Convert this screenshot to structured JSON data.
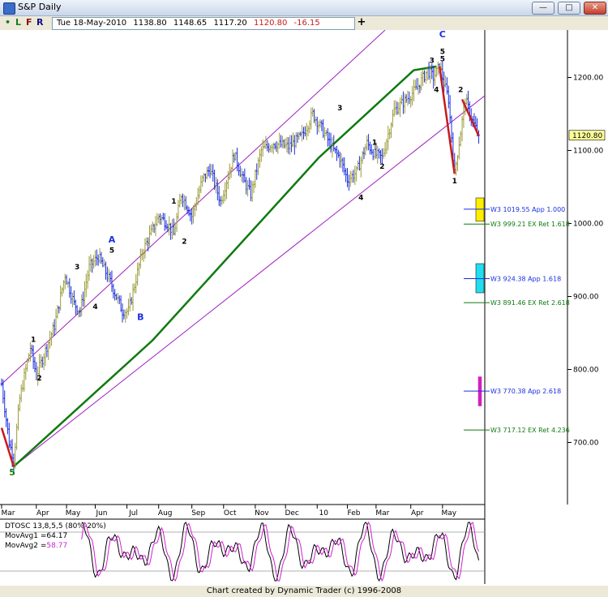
{
  "window": {
    "title": "S&P Daily",
    "min_label": "—",
    "max_label": "□",
    "close_label": "✕"
  },
  "toolbar": {
    "dot_icon": "•",
    "btn_l": "L",
    "btn_f": "F",
    "btn_r": "R",
    "quote": {
      "date": "Tue 18-May-2010",
      "open": "1138.80",
      "high": "1148.65",
      "low": "1117.20",
      "close": "1120.80",
      "change": "-16.15"
    },
    "add_label": "+"
  },
  "colors": {
    "background": "#ffffff",
    "up_bar": "#9b9b3a",
    "down_bar": "#1a2fe0",
    "channel": "#a020c0",
    "ma_line": "#0f7a0f",
    "red_line": "#c81a1a",
    "wave_label_blue": "#1a2fe0",
    "target_green": "#0f7a0f",
    "target_blue": "#1a2fe0",
    "osc_black": "#000000",
    "osc_magenta": "#d020d0"
  },
  "chart_data": {
    "type": "bar",
    "instrument": "S&P Daily",
    "y_range": [
      615,
      1265
    ],
    "y_ticks": [
      700,
      800,
      900,
      1000,
      1100,
      1200
    ],
    "y_tick_labels": [
      "700.00",
      "800.00",
      "900.00",
      "1000.00",
      "1100.00",
      "1200.00"
    ],
    "last_price": 1120.8,
    "last_price_label": "1120.80",
    "x_months": [
      "Mar",
      "Apr",
      "May",
      "Jun",
      "Jul",
      "Aug",
      "Sep",
      "Oct",
      "Nov",
      "Dec",
      "10",
      "Feb",
      "Mar",
      "Apr",
      "May"
    ],
    "x_range": [
      0,
      320
    ],
    "month_day_index": [
      0,
      23,
      43,
      62,
      83,
      104,
      126,
      147,
      168,
      188,
      209,
      229,
      248,
      271,
      292
    ],
    "price_path": [
      [
        0,
        780
      ],
      [
        5,
        700
      ],
      [
        8,
        677
      ],
      [
        12,
        760
      ],
      [
        19,
        830
      ],
      [
        23,
        792
      ],
      [
        35,
        860
      ],
      [
        42,
        930
      ],
      [
        48,
        890
      ],
      [
        52,
        880
      ],
      [
        58,
        940
      ],
      [
        64,
        955
      ],
      [
        72,
        920
      ],
      [
        80,
        880
      ],
      [
        84,
        880
      ],
      [
        93,
        960
      ],
      [
        104,
        1010
      ],
      [
        110,
        1000
      ],
      [
        114,
        985
      ],
      [
        119,
        1040
      ],
      [
        126,
        1010
      ],
      [
        133,
        1060
      ],
      [
        138,
        1075
      ],
      [
        145,
        1030
      ],
      [
        154,
        1095
      ],
      [
        160,
        1060
      ],
      [
        165,
        1040
      ],
      [
        172,
        1100
      ],
      [
        180,
        1110
      ],
      [
        190,
        1105
      ],
      [
        199,
        1120
      ],
      [
        206,
        1150
      ],
      [
        212,
        1130
      ],
      [
        220,
        1100
      ],
      [
        224,
        1090
      ],
      [
        229,
        1060
      ],
      [
        235,
        1070
      ],
      [
        242,
        1110
      ],
      [
        247,
        1095
      ],
      [
        252,
        1090
      ],
      [
        260,
        1155
      ],
      [
        268,
        1170
      ],
      [
        275,
        1185
      ],
      [
        282,
        1210
      ],
      [
        286,
        1200
      ],
      [
        290,
        1215
      ],
      [
        296,
        1170
      ],
      [
        300,
        1068
      ],
      [
        305,
        1140
      ],
      [
        307,
        1170
      ],
      [
        312,
        1140
      ],
      [
        316,
        1120.8
      ]
    ],
    "green_ma": [
      [
        8,
        667
      ],
      [
        100,
        840
      ],
      [
        210,
        1090
      ],
      [
        273,
        1210
      ],
      [
        288,
        1215
      ]
    ],
    "red_lines": [
      [
        [
          0,
          720
        ],
        [
          8,
          667
        ]
      ],
      [
        [
          290,
          1215
        ],
        [
          300,
          1068
        ]
      ],
      [
        [
          305,
          1170
        ],
        [
          316,
          1120
        ]
      ]
    ],
    "channel_upper": [
      [
        0,
        780
      ],
      [
        254,
        1265
      ]
    ],
    "channel_lower": [
      [
        8,
        667
      ],
      [
        320,
        1175
      ]
    ],
    "wave_labels": [
      {
        "text": "5",
        "x": 7,
        "y": 655,
        "color": "green"
      },
      {
        "text": "1",
        "x": 21,
        "y": 838,
        "color": "black"
      },
      {
        "text": "2",
        "x": 25,
        "y": 785,
        "color": "black"
      },
      {
        "text": "3",
        "x": 50,
        "y": 937,
        "color": "black"
      },
      {
        "text": "4",
        "x": 62,
        "y": 883,
        "color": "black"
      },
      {
        "text": "A",
        "x": 73,
        "y": 974,
        "color": "blue"
      },
      {
        "text": "5",
        "x": 73,
        "y": 960,
        "color": "black"
      },
      {
        "text": "B",
        "x": 92,
        "y": 868,
        "color": "blue"
      },
      {
        "text": "1",
        "x": 114,
        "y": 1027,
        "color": "black"
      },
      {
        "text": "2",
        "x": 121,
        "y": 972,
        "color": "black"
      },
      {
        "text": "3",
        "x": 224,
        "y": 1155,
        "color": "black"
      },
      {
        "text": "4",
        "x": 238,
        "y": 1032,
        "color": "black"
      },
      {
        "text": "1",
        "x": 247,
        "y": 1108,
        "color": "black"
      },
      {
        "text": "2",
        "x": 252,
        "y": 1075,
        "color": "black"
      },
      {
        "text": "3",
        "x": 285,
        "y": 1220,
        "color": "black"
      },
      {
        "text": "4",
        "x": 288,
        "y": 1180,
        "color": "black"
      },
      {
        "text": "C",
        "x": 292,
        "y": 1255,
        "color": "blue"
      },
      {
        "text": "5",
        "x": 292,
        "y": 1232,
        "color": "black"
      },
      {
        "text": "5",
        "x": 292,
        "y": 1222,
        "color": "black"
      },
      {
        "text": "1",
        "x": 300,
        "y": 1055,
        "color": "black"
      },
      {
        "text": "2",
        "x": 304,
        "y": 1180,
        "color": "black"
      }
    ],
    "targets": [
      {
        "label": "W3 1019.55 App 1.000",
        "value": 1019.55,
        "color": "blue",
        "box": "yellow",
        "box_range": [
          1003,
          1035
        ]
      },
      {
        "label": "W3 999.21 EX Ret 1.618",
        "value": 999.21,
        "color": "green"
      },
      {
        "label": "W3 924.38 App 1.618",
        "value": 924.38,
        "color": "blue",
        "box": "cyan",
        "box_range": [
          905,
          945
        ]
      },
      {
        "label": "W3 891.46 EX Ret 2.618",
        "value": 891.46,
        "color": "green"
      },
      {
        "label": "W3 770.38 App 2.618",
        "value": 770.38,
        "color": "blue",
        "box": "magenta",
        "box_range": [
          750,
          790
        ]
      },
      {
        "label": "W3 717.12 EX Ret 4.236",
        "value": 717.12,
        "color": "green"
      }
    ],
    "oscillator": {
      "title": "DTOSC 13,8,5,5 (80%-20%)",
      "mov_avg1_label": "MovAvg1 =",
      "mov_avg1_value": "64.17",
      "mov_avg2_label": "MovAvg2 =",
      "mov_avg2_value": "58.77",
      "levels": [
        20,
        80
      ],
      "range": [
        0,
        100
      ]
    }
  },
  "footer": {
    "credit": "Chart created by Dynamic Trader  (c) 1996-2008"
  }
}
